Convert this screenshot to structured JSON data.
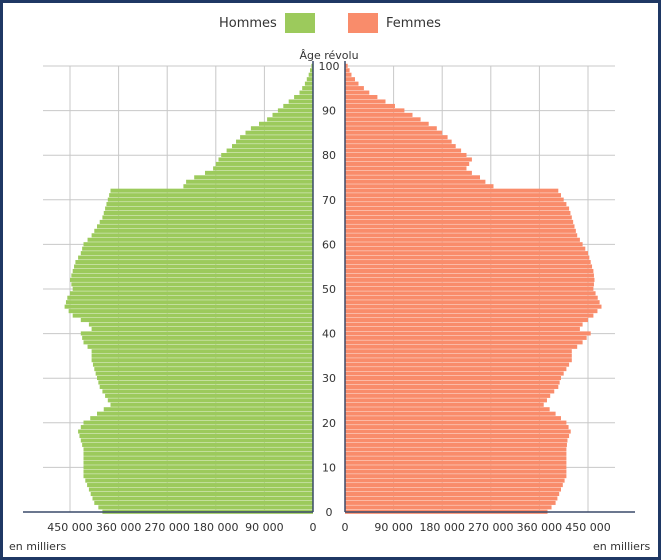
{
  "chart_data": {
    "type": "bar",
    "orientation": "horizontal-population-pyramid",
    "title": "",
    "center_axis_label": "Âge révolu",
    "unit_label": "en milliers",
    "age_ticks": [
      0,
      10,
      20,
      30,
      40,
      50,
      60,
      70,
      80,
      90,
      100
    ],
    "value_ticks": [
      "450 000",
      "360 000",
      "270 000",
      "180 000",
      "90 000",
      "0"
    ],
    "value_ticks_right": [
      "0",
      "90 000",
      "180 000",
      "270 000",
      "360 000",
      "450 000"
    ],
    "xlim": [
      0,
      500000
    ],
    "age_range": [
      0,
      100
    ],
    "grid": true,
    "legend": "top-center",
    "series": [
      {
        "name": "Hommes",
        "color": "#9cca5c",
        "anchors": [
          [
            0,
            390000
          ],
          [
            2,
            405000
          ],
          [
            5,
            415000
          ],
          [
            8,
            425000
          ],
          [
            10,
            425000
          ],
          [
            12,
            425000
          ],
          [
            14,
            425000
          ],
          [
            16,
            430000
          ],
          [
            18,
            435000
          ],
          [
            20,
            425000
          ],
          [
            22,
            400000
          ],
          [
            24,
            375000
          ],
          [
            26,
            385000
          ],
          [
            28,
            395000
          ],
          [
            30,
            400000
          ],
          [
            32,
            405000
          ],
          [
            34,
            410000
          ],
          [
            36,
            410000
          ],
          [
            38,
            425000
          ],
          [
            40,
            430000
          ],
          [
            41,
            410000
          ],
          [
            42,
            415000
          ],
          [
            44,
            445000
          ],
          [
            46,
            460000
          ],
          [
            48,
            455000
          ],
          [
            50,
            445000
          ],
          [
            52,
            450000
          ],
          [
            54,
            445000
          ],
          [
            56,
            440000
          ],
          [
            58,
            430000
          ],
          [
            60,
            425000
          ],
          [
            62,
            410000
          ],
          [
            64,
            400000
          ],
          [
            66,
            390000
          ],
          [
            68,
            385000
          ],
          [
            70,
            380000
          ],
          [
            72,
            375000
          ],
          [
            73,
            240000
          ],
          [
            74,
            235000
          ],
          [
            75,
            220000
          ],
          [
            76,
            200000
          ],
          [
            77,
            185000
          ],
          [
            78,
            180000
          ],
          [
            79,
            175000
          ],
          [
            80,
            170000
          ],
          [
            82,
            150000
          ],
          [
            84,
            135000
          ],
          [
            86,
            115000
          ],
          [
            88,
            85000
          ],
          [
            90,
            65000
          ],
          [
            92,
            45000
          ],
          [
            94,
            25000
          ],
          [
            96,
            15000
          ],
          [
            98,
            8000
          ],
          [
            100,
            3000
          ]
        ]
      },
      {
        "name": "Femmes",
        "color": "#f98c6b",
        "anchors": [
          [
            0,
            375000
          ],
          [
            2,
            390000
          ],
          [
            5,
            400000
          ],
          [
            8,
            410000
          ],
          [
            10,
            410000
          ],
          [
            12,
            410000
          ],
          [
            14,
            410000
          ],
          [
            16,
            412000
          ],
          [
            18,
            418000
          ],
          [
            20,
            410000
          ],
          [
            22,
            390000
          ],
          [
            24,
            368000
          ],
          [
            26,
            380000
          ],
          [
            28,
            395000
          ],
          [
            30,
            400000
          ],
          [
            32,
            410000
          ],
          [
            34,
            420000
          ],
          [
            36,
            420000
          ],
          [
            38,
            440000
          ],
          [
            40,
            455000
          ],
          [
            41,
            435000
          ],
          [
            42,
            440000
          ],
          [
            44,
            460000
          ],
          [
            46,
            475000
          ],
          [
            48,
            468000
          ],
          [
            50,
            460000
          ],
          [
            52,
            462000
          ],
          [
            54,
            460000
          ],
          [
            56,
            455000
          ],
          [
            58,
            450000
          ],
          [
            60,
            440000
          ],
          [
            62,
            430000
          ],
          [
            64,
            425000
          ],
          [
            66,
            420000
          ],
          [
            68,
            415000
          ],
          [
            70,
            405000
          ],
          [
            72,
            395000
          ],
          [
            73,
            275000
          ],
          [
            74,
            260000
          ],
          [
            75,
            250000
          ],
          [
            76,
            235000
          ],
          [
            77,
            225000
          ],
          [
            78,
            230000
          ],
          [
            79,
            235000
          ],
          [
            80,
            225000
          ],
          [
            82,
            205000
          ],
          [
            84,
            190000
          ],
          [
            86,
            170000
          ],
          [
            88,
            140000
          ],
          [
            90,
            110000
          ],
          [
            92,
            75000
          ],
          [
            94,
            45000
          ],
          [
            96,
            25000
          ],
          [
            98,
            12000
          ],
          [
            100,
            5000
          ]
        ]
      }
    ]
  }
}
